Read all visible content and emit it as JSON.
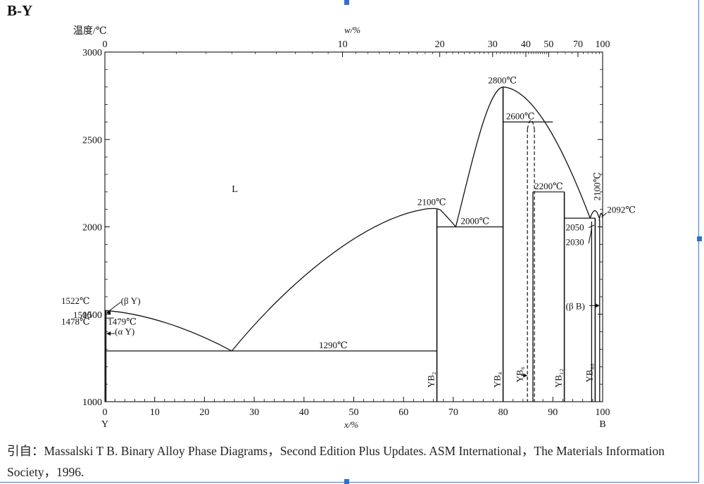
{
  "title": "B-Y",
  "chart_data": {
    "type": "phase-diagram",
    "title": "B-Y",
    "ylabel": "温度/℃",
    "xlabel_bottom": "x/%",
    "xlabel_top": "w/%",
    "ylim": [
      1000,
      3000
    ],
    "xlim": [
      0,
      100
    ],
    "y_ticks": [
      1000,
      1500,
      2000,
      2500,
      3000
    ],
    "x_ticks_bottom": [
      0,
      10,
      20,
      30,
      40,
      50,
      60,
      70,
      80,
      90,
      100
    ],
    "x_ticks_top": [
      0,
      10,
      20,
      30,
      40,
      50,
      70,
      100
    ],
    "end_labels": {
      "left": "Y",
      "right": "B"
    },
    "region_label": "L",
    "temperature_labels": {
      "t1522": "1522℃",
      "t1478": "1478℃",
      "t1479": "1479℃",
      "t1290": "1290℃",
      "t2100a": "2100℃",
      "t2000": "2000℃",
      "t2800": "2800℃",
      "t2600": "2600℃",
      "t2200": "2200℃",
      "t2100b": "2100℃",
      "t2050": "2050",
      "t2030": "2030",
      "t2092": "2092℃"
    },
    "phase_labels": {
      "betaY": "(β Y)",
      "alphaY": "(α Y)",
      "betaB": "(β B)",
      "yb2": "YB₂",
      "yb4": "YB₄",
      "yb6": "YB₆",
      "yb12": "YB₁₂",
      "yb66": "YB₆₆"
    },
    "invariants": [
      {
        "temperature": 1290,
        "x_range": [
          0,
          66.7
        ]
      },
      {
        "temperature": 2000,
        "x_range": [
          66.7,
          80
        ]
      },
      {
        "temperature": 2600,
        "x_range": [
          80,
          90
        ]
      },
      {
        "temperature": 2200,
        "x_range": [
          86,
          92.3
        ]
      },
      {
        "temperature": 2050,
        "x_range": [
          92.3,
          98.5
        ]
      }
    ],
    "compounds": [
      {
        "name": "YB₂",
        "x": 66.7,
        "melting": 2100
      },
      {
        "name": "YB₄",
        "x": 80,
        "melting": 2800
      },
      {
        "name": "YB₆",
        "x": 85.7,
        "top": 2600
      },
      {
        "name": "YB₁₂",
        "x": 92.3,
        "top": 2200
      },
      {
        "name": "YB₆₆",
        "x": 98.5,
        "top": 2100
      }
    ],
    "eutectic": {
      "x": 25.5,
      "temperature": 1290
    },
    "element_points": [
      {
        "element": "Y",
        "x": 0,
        "melting": 1522
      },
      {
        "element": "B",
        "x": 100,
        "melting": 2092
      }
    ]
  },
  "caption": "引自：Massalski T B. Binary Alloy Phase Diagrams，Second Edition Plus Updates. ASM International，The Materials Information Society，1996."
}
